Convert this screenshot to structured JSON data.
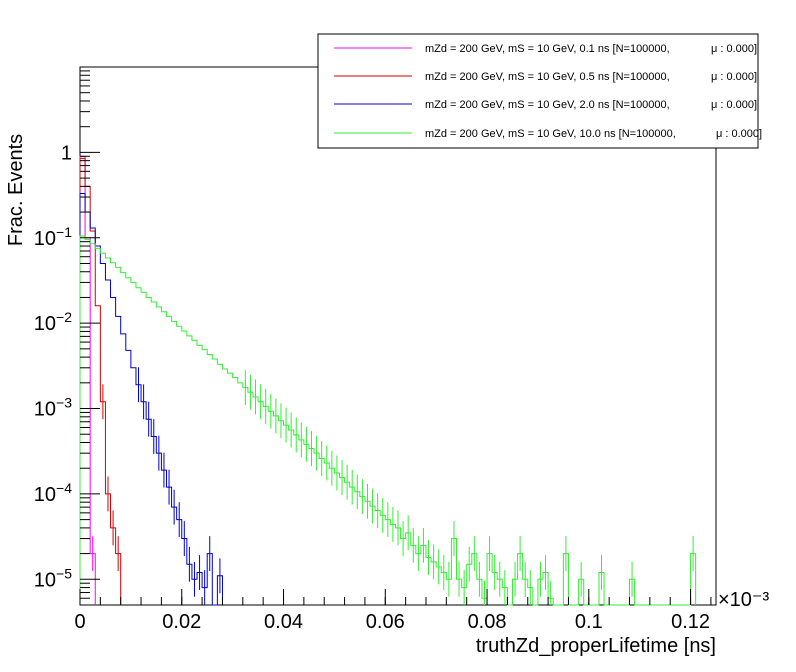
{
  "chart_data": {
    "type": "line",
    "title": "",
    "xlabel": "truthZd_properLifetime [ns]",
    "ylabel": "Frac. Events",
    "x_exponent_label": "×10⁻³",
    "xlim": [
      0,
      0.125
    ],
    "ylim": [
      5e-06,
      10
    ],
    "yscale": "log",
    "grid": false,
    "legend_placement": "top-right",
    "x_ticks": [
      0,
      0.02,
      0.04,
      0.06,
      0.08,
      0.1,
      0.12
    ],
    "x_tick_labels": [
      "0",
      "0.02",
      "0.04",
      "0.06",
      "0.08",
      "0.1",
      "0.12"
    ],
    "y_ticks": [
      1e-05,
      0.0001,
      0.001,
      0.01,
      0.1,
      1
    ],
    "y_tick_labels": [
      {
        "base": "10",
        "exp": "−5"
      },
      {
        "base": "10",
        "exp": "−4"
      },
      {
        "base": "10",
        "exp": "−3"
      },
      {
        "base": "10",
        "exp": "−2"
      },
      {
        "base": "10",
        "exp": "−1"
      },
      {
        "base": "1",
        "exp": ""
      }
    ],
    "series": [
      {
        "name": "mZd = 200 GeV, mS = 10 GeV, 0.1 ns [N=100000,",
        "mu_label": "μ : 0.000]",
        "color": "#ff00ff",
        "bin_width": 0.001,
        "values": [
          0.9,
          0.1,
          2e-05
        ]
      },
      {
        "name": "mZd = 200 GeV, mS = 10 GeV, 0.5 ns [N=100000,",
        "mu_label": "μ : 0.000]",
        "color": "#d40000",
        "bin_width": 0.001,
        "values": [
          0.85,
          0.4,
          0.12,
          0.016,
          0.0012,
          0.0001,
          4e-05,
          2e-05
        ]
      },
      {
        "name": "mZd = 200 GeV, mS = 10 GeV, 2.0 ns [N=100000,",
        "mu_label": "μ : 0.000]",
        "color": "#0000cc",
        "bin_width": 0.001,
        "values": [
          0.33,
          0.2,
          0.13,
          0.08,
          0.05,
          0.032,
          0.02,
          0.012,
          0.0075,
          0.0048,
          0.003,
          0.0019,
          0.0012,
          0.00075,
          0.00047,
          0.0003,
          0.00019,
          0.00012,
          7e-05,
          5e-05,
          3e-05,
          1.5e-05,
          1e-05,
          1.2e-05,
          8e-06,
          2e-05,
          5e-06,
          1.1e-05
        ]
      },
      {
        "name": "mZd = 200 GeV, mS = 10 GeV, 10.0 ns [N=100000,",
        "mu_label": "μ : 0.000]",
        "color": "#33ee33",
        "bin_width": 0.001,
        "values": [
          0.105,
          0.095,
          0.085,
          0.075,
          0.066,
          0.058,
          0.051,
          0.045,
          0.039,
          0.034,
          0.03,
          0.026,
          0.023,
          0.02,
          0.0177,
          0.0155,
          0.0136,
          0.012,
          0.0105,
          0.0092,
          0.0081,
          0.0071,
          0.0063,
          0.0055,
          0.0049,
          0.0043,
          0.0038,
          0.0033,
          0.0029,
          0.0026,
          0.0023,
          0.002,
          0.00176,
          0.00155,
          0.00137,
          0.0012,
          0.00106,
          0.00093,
          0.00082,
          0.00072,
          0.00064,
          0.00056,
          0.00049,
          0.00043,
          0.00038,
          0.00034,
          0.0003,
          0.00026,
          0.00023,
          0.0002,
          0.000176,
          0.000155,
          0.000137,
          0.00012,
          0.000106,
          9.3e-05,
          8.2e-05,
          7.2e-05,
          6.4e-05,
          5.6e-05,
          5e-05,
          4.4e-05,
          4e-05,
          3e-05,
          3.5e-05,
          2.5e-05,
          2e-05,
          2.5e-05,
          1.8e-05,
          1.6e-05,
          1.4e-05,
          1.2e-05,
          1e-05,
          3e-05,
          1e-05,
          8e-06,
          1.5e-05,
          2e-05,
          1e-05,
          6e-06,
          2e-05,
          1.2e-05,
          1e-05,
          8e-06,
          5e-06,
          1e-05,
          2e-05,
          1e-05,
          8e-06,
          5e-06,
          1e-05,
          1.2e-05,
          6e-06,
          5e-06,
          5e-06,
          2e-05,
          5e-06,
          5e-06,
          1e-05,
          5e-06,
          5e-06,
          5e-06,
          1.2e-05,
          5e-06,
          5e-06,
          5e-06,
          5e-06,
          5e-06,
          1e-05,
          5e-06,
          5e-06,
          5e-06,
          5e-06,
          5e-06,
          5e-06,
          5e-06,
          5e-06,
          5e-06,
          5e-06,
          5e-06,
          2e-05
        ]
      }
    ]
  }
}
